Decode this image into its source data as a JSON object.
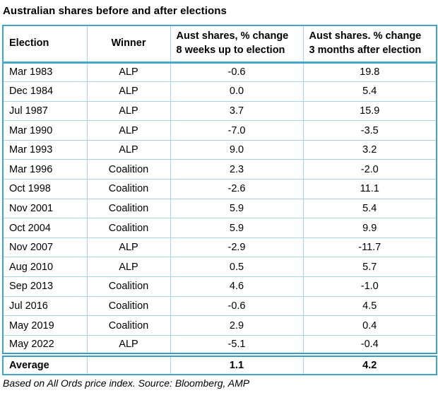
{
  "title": "Australian shares before and after elections",
  "colors": {
    "outer_border": "#3fa5cc",
    "header_rule": "#45a7cd",
    "cell_border": "#a9d5e9",
    "average_rule": "#3b9cc4",
    "text": "#000000"
  },
  "chart_data": {
    "type": "table",
    "title": "Australian shares before and after elections",
    "columns": [
      {
        "label": "Election"
      },
      {
        "label": "Winner"
      },
      {
        "label": "Aust shares, % change",
        "label2": "8 weeks up to election"
      },
      {
        "label": "Aust shares. % change",
        "label2": "3 months after election"
      }
    ],
    "rows": [
      [
        "Mar 1983",
        "ALP",
        "-0.6",
        "19.8"
      ],
      [
        "Dec 1984",
        "ALP",
        "0.0",
        "5.4"
      ],
      [
        "Jul 1987",
        "ALP",
        "3.7",
        "15.9"
      ],
      [
        "Mar 1990",
        "ALP",
        "-7.0",
        "-3.5"
      ],
      [
        "Mar 1993",
        "ALP",
        "9.0",
        "3.2"
      ],
      [
        "Mar 1996",
        "Coalition",
        "2.3",
        "-2.0"
      ],
      [
        "Oct 1998",
        "Coalition",
        "-2.6",
        "11.1"
      ],
      [
        "Nov 2001",
        "Coalition",
        "5.9",
        "5.4"
      ],
      [
        "Oct 2004",
        "Coalition",
        "5.9",
        "9.9"
      ],
      [
        "Nov 2007",
        "ALP",
        "-2.9",
        "-11.7"
      ],
      [
        "Aug 2010",
        "ALP",
        "0.5",
        "5.7"
      ],
      [
        "Sep 2013",
        "Coalition",
        "4.6",
        "-1.0"
      ],
      [
        "Jul 2016",
        "Coalition",
        "-0.6",
        "4.5"
      ],
      [
        "May 2019",
        "Coalition",
        "2.9",
        "0.4"
      ],
      [
        "May 2022",
        "ALP",
        "-5.1",
        "-0.4"
      ]
    ],
    "average": [
      "Average",
      "",
      "1.1",
      "4.2"
    ],
    "footnote": "Based on All Ords price index. Source: Bloomberg, AMP"
  }
}
